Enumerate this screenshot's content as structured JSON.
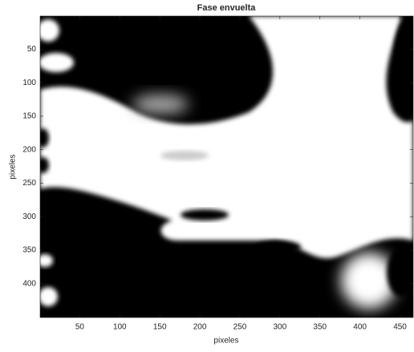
{
  "chart_data": {
    "type": "image",
    "title": "Fase envuelta",
    "xlabel": "pixeles",
    "ylabel": "pixeles",
    "xlim": [
      0.5,
      466.5
    ],
    "ylim": [
      0.5,
      450.5
    ],
    "y_reversed": true,
    "xticks": [
      50,
      100,
      150,
      200,
      250,
      300,
      350,
      400,
      450
    ],
    "yticks": [
      50,
      100,
      150,
      200,
      250,
      300,
      350,
      400
    ],
    "colormap": "gray"
  }
}
